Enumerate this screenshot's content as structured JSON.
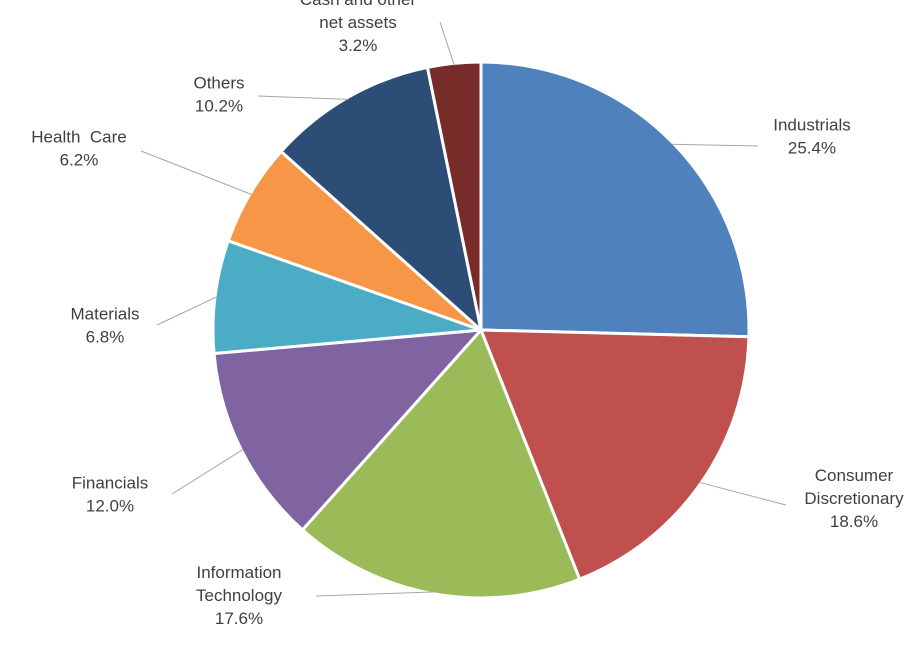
{
  "chart_data": {
    "type": "pie",
    "title": "",
    "start_angle_deg": 90,
    "direction": "clockwise",
    "slices": [
      {
        "label": [
          "Industrials"
        ],
        "value": 25.4,
        "value_label": "25.4%",
        "color": "#4F81BD"
      },
      {
        "label": [
          "Consumer",
          "Discretionary"
        ],
        "value": 18.6,
        "value_label": "18.6%",
        "color": "#C0504D"
      },
      {
        "label": [
          "Information",
          "Technology"
        ],
        "value": 17.6,
        "value_label": "17.6%",
        "color": "#9BBB59"
      },
      {
        "label": [
          "Financials"
        ],
        "value": 12.0,
        "value_label": "12.0%",
        "color": "#8064A2"
      },
      {
        "label": [
          "Materials"
        ],
        "value": 6.8,
        "value_label": "6.8%",
        "color": "#4BACC6"
      },
      {
        "label": [
          "Health  Care"
        ],
        "value": 6.2,
        "value_label": "6.2%",
        "color": "#F79646"
      },
      {
        "label": [
          "Others"
        ],
        "value": 10.2,
        "value_label": "10.2%",
        "color": "#2C4D75"
      },
      {
        "label": [
          "Cash and other",
          "net assets"
        ],
        "value": 3.2,
        "value_label": "3.2%",
        "color": "#772C2A"
      }
    ]
  }
}
